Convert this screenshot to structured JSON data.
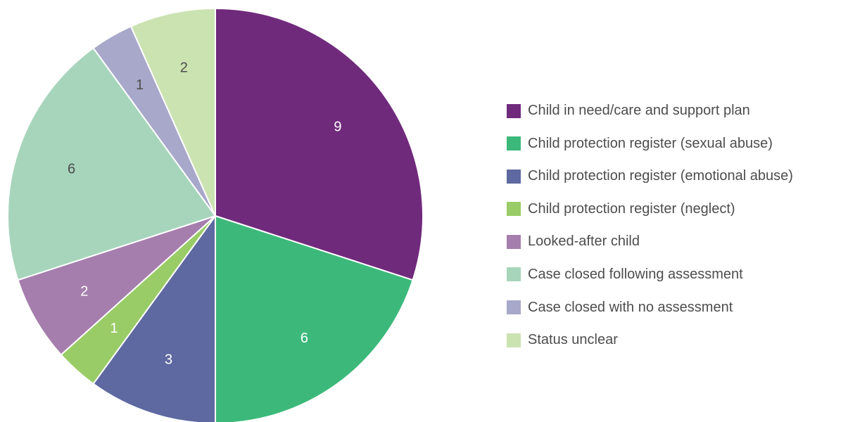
{
  "chart_data": {
    "type": "pie",
    "title": "",
    "series": [
      {
        "name": "Child in need/care and support plan",
        "value": 9,
        "color": "#702a7c"
      },
      {
        "name": "Child protection register (sexual abuse)",
        "value": 6,
        "color": "#3cb97a"
      },
      {
        "name": "Child protection register (emotional abuse)",
        "value": 3,
        "color": "#5d69a0"
      },
      {
        "name": "Child protection register (neglect)",
        "value": 1,
        "color": "#99cc66"
      },
      {
        "name": "Looked-after child",
        "value": 2,
        "color": "#a57ead"
      },
      {
        "name": "Case closed following assessment",
        "value": 6,
        "color": "#a6d5bb"
      },
      {
        "name": "Case closed with no assessment",
        "value": 1,
        "color": "#a8a8ca"
      },
      {
        "name": "Status unclear",
        "value": 2,
        "color": "#cbe2b1"
      }
    ],
    "data_labels": [
      "9",
      "6",
      "3",
      "1",
      "2",
      "6",
      "1",
      "2"
    ],
    "label_colors": [
      "#ffffff",
      "#ffffff",
      "#ffffff",
      "#ffffff",
      "#ffffff",
      "#4d4d4d",
      "#4d4d4d",
      "#4d4d4d"
    ],
    "start_angle": "12 o'clock",
    "direction": "clockwise",
    "legend_position": "right"
  }
}
